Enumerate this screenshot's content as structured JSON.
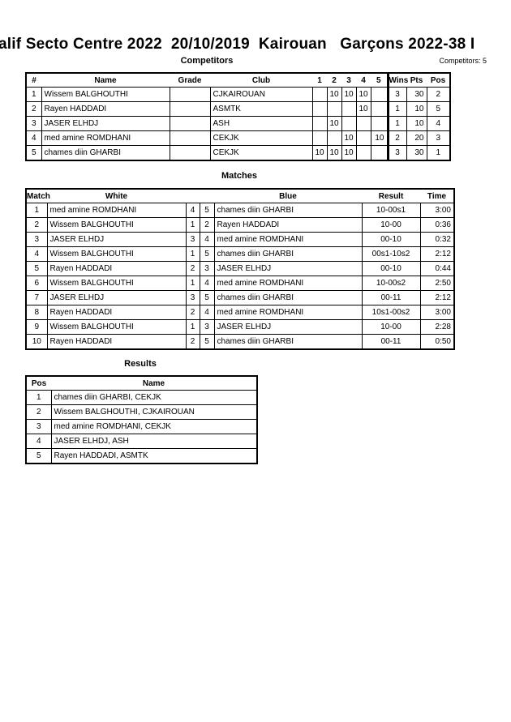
{
  "header": {
    "title": "alif Secto Centre 2022  20/10/2019  Kairouan   Garçons 2022-38 I",
    "competitors_heading": "Competitors",
    "competitors_count": "Competitors: 5"
  },
  "competitors": {
    "columns": [
      "#",
      "Name",
      "Grade",
      "Club",
      "1",
      "2",
      "3",
      "4",
      "5",
      "Wins",
      "Pts",
      "Pos"
    ],
    "rows": [
      [
        "1",
        "Wissem BALGHOUTHI",
        "",
        "CJKAIROUAN",
        "",
        "10",
        "10",
        "10",
        "",
        "3",
        "30",
        "2"
      ],
      [
        "2",
        "Rayen HADDADI",
        "",
        "ASMTK",
        "",
        "",
        "",
        "10",
        "",
        "1",
        "10",
        "5"
      ],
      [
        "3",
        "JASER ELHDJ",
        "",
        "ASH",
        "",
        "10",
        "",
        "",
        "",
        "1",
        "10",
        "4"
      ],
      [
        "4",
        "med amine ROMDHANI",
        "",
        "CEKJK",
        "",
        "",
        "10",
        "",
        "10",
        "2",
        "20",
        "3"
      ],
      [
        "5",
        "chames diin GHARBI",
        "",
        "CEKJK",
        "10",
        "10",
        "10",
        "",
        "",
        "3",
        "30",
        "1"
      ]
    ]
  },
  "matches": {
    "heading": "Matches",
    "columns": [
      "Match",
      "White",
      "",
      "",
      "Blue",
      "Result",
      "Time"
    ],
    "rows": [
      [
        "1",
        "med amine ROMDHANI",
        "4",
        "5",
        "chames diin GHARBI",
        "10-00s1",
        "3:00"
      ],
      [
        "2",
        "Wissem BALGHOUTHI",
        "1",
        "2",
        "Rayen HADDADI",
        "10-00",
        "0:36"
      ],
      [
        "3",
        "JASER ELHDJ",
        "3",
        "4",
        "med amine ROMDHANI",
        "00-10",
        "0:32"
      ],
      [
        "4",
        "Wissem BALGHOUTHI",
        "1",
        "5",
        "chames diin GHARBI",
        "00s1-10s2",
        "2:12"
      ],
      [
        "5",
        "Rayen HADDADI",
        "2",
        "3",
        "JASER ELHDJ",
        "00-10",
        "0:44"
      ],
      [
        "6",
        "Wissem BALGHOUTHI",
        "1",
        "4",
        "med amine ROMDHANI",
        "10-00s2",
        "2:50"
      ],
      [
        "7",
        "JASER ELHDJ",
        "3",
        "5",
        "chames diin GHARBI",
        "00-11",
        "2:12"
      ],
      [
        "8",
        "Rayen HADDADI",
        "2",
        "4",
        "med amine ROMDHANI",
        "10s1-00s2",
        "3:00"
      ],
      [
        "9",
        "Wissem BALGHOUTHI",
        "1",
        "3",
        "JASER ELHDJ",
        "10-00",
        "2:28"
      ],
      [
        "10",
        "Rayen HADDADI",
        "2",
        "5",
        "chames diin GHARBI",
        "00-11",
        "0:50"
      ]
    ]
  },
  "results": {
    "heading": "Results",
    "columns": [
      "Pos",
      "Name"
    ],
    "rows": [
      [
        "1",
        "chames diin GHARBI, CEKJK"
      ],
      [
        "2",
        "Wissem BALGHOUTHI, CJKAIROUAN"
      ],
      [
        "3",
        "med amine ROMDHANI, CEKJK"
      ],
      [
        "4",
        "JASER ELHDJ, ASH"
      ],
      [
        "5",
        "Rayen HADDADI, ASMTK"
      ]
    ]
  }
}
